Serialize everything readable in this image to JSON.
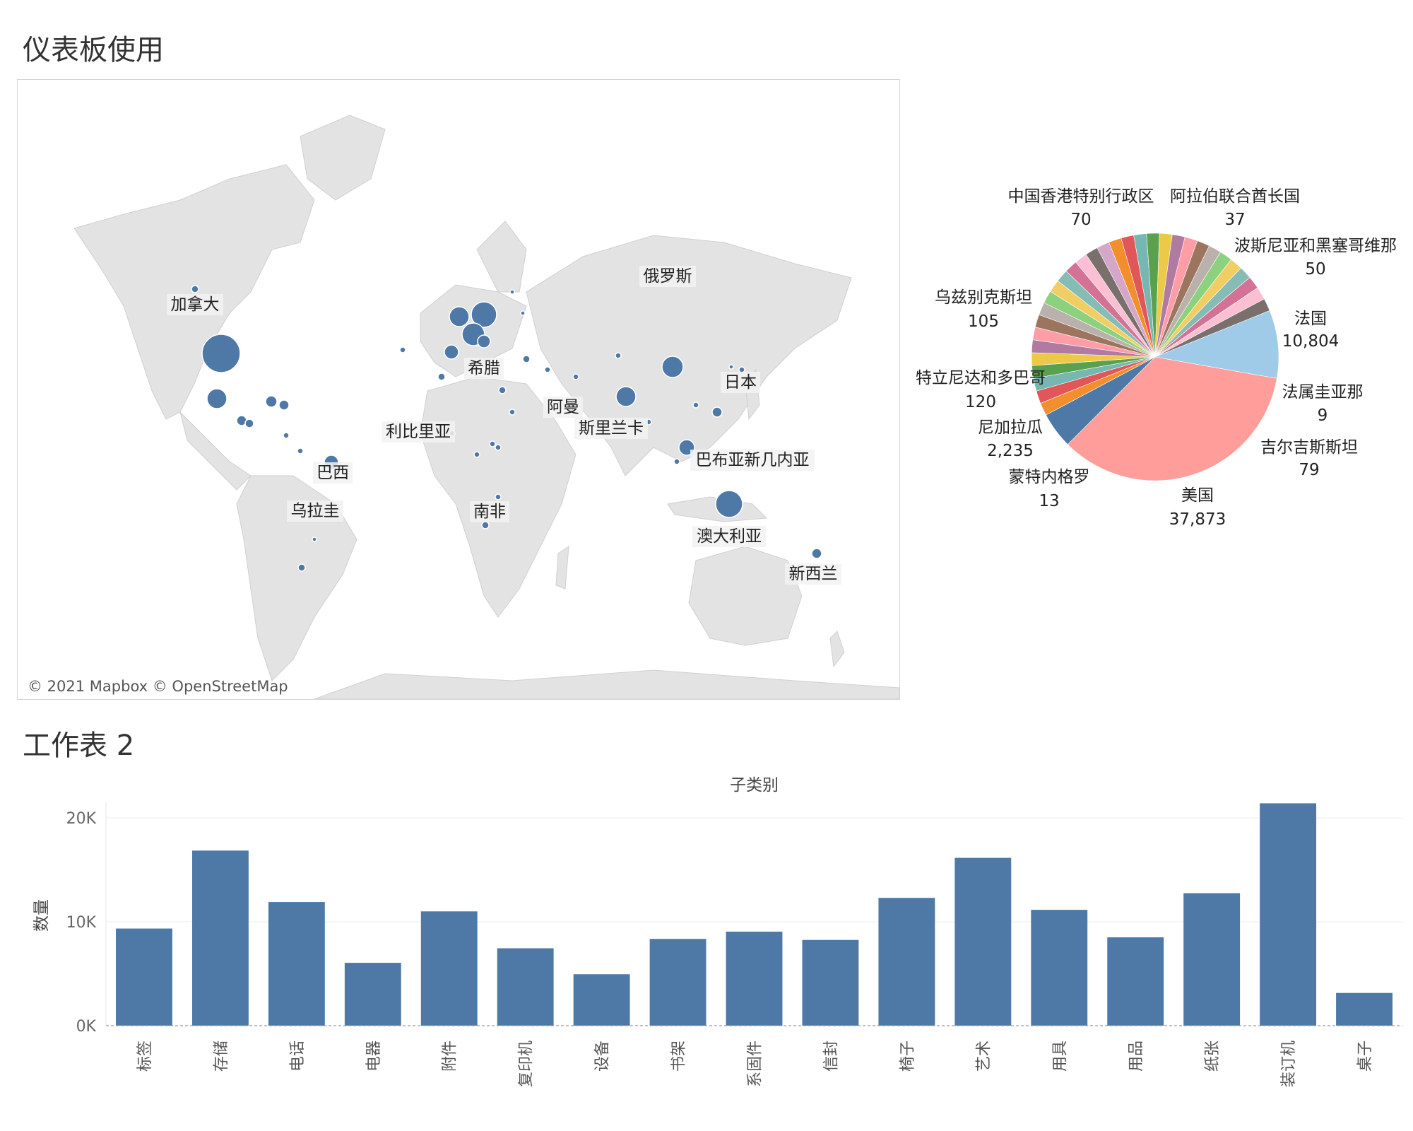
{
  "dashboard": {
    "title": "仪表板使用",
    "sheet2_title": "工作表 2"
  },
  "map": {
    "attribution": "© 2021 Mapbox © OpenStreetMap",
    "labels": [
      "加拿大",
      "俄罗斯",
      "希腊",
      "日本",
      "阿曼",
      "利比里亚",
      "斯里兰卡",
      "巴布亚新几内亚",
      "巴西",
      "澳大利亚",
      "乌拉圭",
      "南非",
      "新西兰"
    ],
    "marker_color": "#4e79a7"
  },
  "chart_data": [
    {
      "type": "pie",
      "labels": [
        "中国香港特别行政区",
        "阿拉伯联合酋长国",
        "波斯尼亚和黑塞哥维那",
        "法国",
        "法属圭亚那",
        "吉尔吉斯斯坦",
        "美国",
        "蒙特内格罗",
        "尼加拉瓜",
        "特立尼达和多巴哥",
        "乌兹别克斯坦"
      ],
      "values": [
        70,
        37,
        50,
        10804,
        9,
        79,
        37873,
        13,
        2235,
        120,
        105
      ],
      "value_labels": [
        "70",
        "37",
        "50",
        "10,804",
        "9",
        "79",
        "37,873",
        "13",
        "2,235",
        "120",
        "105"
      ],
      "colors": {
        "美国": "#ff9d9a",
        "法国": "#a0cbe8",
        "尼加拉瓜": "#4e79a7"
      }
    },
    {
      "type": "bar",
      "title": "子类别",
      "ylabel": "数量",
      "categories": [
        "标签",
        "存储",
        "电话",
        "电器",
        "附件",
        "复印机",
        "设备",
        "书架",
        "系固件",
        "信封",
        "椅子",
        "艺术",
        "用具",
        "用品",
        "纸张",
        "装订机",
        "桌子"
      ],
      "values": [
        9350,
        16850,
        11900,
        6050,
        11000,
        7450,
        4950,
        8350,
        9050,
        8250,
        12300,
        16150,
        11150,
        8500,
        12750,
        21400,
        3150
      ],
      "yticks": [
        "0K",
        "10K",
        "20K"
      ],
      "ylim": [
        0,
        22000
      ],
      "color": "#4e79a7"
    }
  ]
}
